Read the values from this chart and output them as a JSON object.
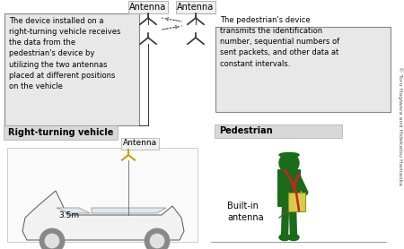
{
  "bg_color": "#ffffff",
  "box_fill": "#e8e8e8",
  "box_edge_color": "#888888",
  "label_bg": "#d0d0d0",
  "text_left": "The device installed on a\nright-turning vehicle receives\nthe data from the\npedestrian's device by\nutilizing the two antennas\nplaced at different positions\non the vehicle",
  "text_right": "The pedestrian's device\ntransmits the identification\nnumber, sequential numbers of\nsent packets, and other data at\nconstant intervals.",
  "label_vehicle": "Right-turning vehicle",
  "label_pedestrian": "Pedestrian",
  "label_antenna_top_left": "Antenna",
  "label_antenna_top_right": "Antenna",
  "label_antenna_bottom": "Antenna",
  "label_built_in": "Built-in\nantenna",
  "label_distance": "3.5m",
  "copyright_text": "© Toru Hagiwara and Hidekatsu Hamaoka",
  "antenna_color": "#c8a000",
  "signal_color": "#666666",
  "pedestrian_color": "#1a6b1a",
  "device_color": "#d4cc50",
  "strap_color": "#cc2222",
  "dark_color": "#333333",
  "line_color": "#555555"
}
